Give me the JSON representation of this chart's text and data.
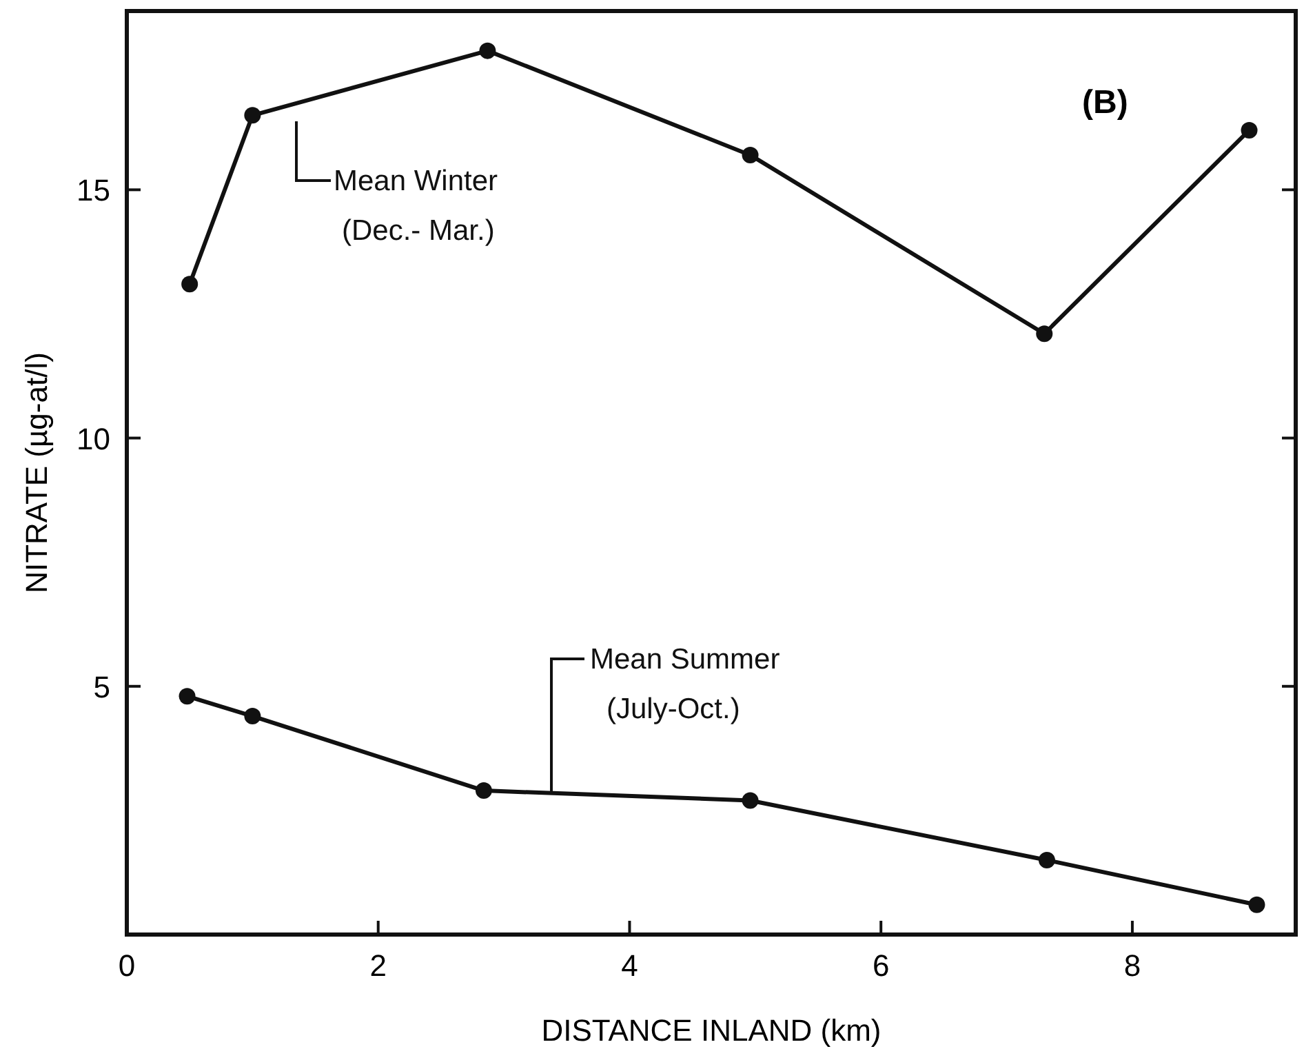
{
  "chart_data": {
    "type": "line",
    "xlabel": "DISTANCE INLAND (km)",
    "ylabel": "NITRATE (µg-at/l)",
    "xlim": [
      0,
      9.3
    ],
    "ylim": [
      0,
      18.6
    ],
    "xticks": [
      0,
      2,
      4,
      6,
      8
    ],
    "yticks": [
      5,
      10,
      15
    ],
    "marker": "circle",
    "line_style": "solid",
    "series": [
      {
        "name": "Mean Winter",
        "color": "#111111",
        "x": [
          0.5,
          1.0,
          2.87,
          4.96,
          7.3,
          8.93
        ],
        "values": [
          13.1,
          16.5,
          17.8,
          15.7,
          12.1,
          16.2
        ]
      },
      {
        "name": "Mean Summer",
        "color": "#111111",
        "x": [
          0.48,
          1.0,
          2.84,
          4.96,
          7.32,
          8.99
        ],
        "values": [
          4.8,
          4.4,
          2.9,
          2.7,
          1.5,
          0.6
        ]
      }
    ],
    "annotations": [
      "(B)",
      "(Dec.- Mar.)",
      "(July-Oct.)"
    ]
  }
}
